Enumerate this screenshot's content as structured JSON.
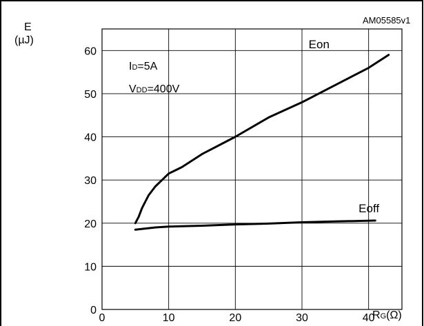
{
  "figure_id": "AM05585v1",
  "conditions": {
    "id": {
      "base": "I",
      "sub": "D",
      "rest": "=5A"
    },
    "vdd": {
      "base": "V",
      "sub": "DD",
      "rest": "=400V"
    }
  },
  "chart_data": {
    "type": "line",
    "ylabel": {
      "line1": "E",
      "line2": "(µJ)"
    },
    "xlabel": {
      "base": "R",
      "sub": "G",
      "rest": "(Ω)"
    },
    "xlim": [
      0,
      45
    ],
    "ylim": [
      0,
      65
    ],
    "xticks": [
      "0",
      "10",
      "20",
      "30",
      "40"
    ],
    "yticks": [
      "0",
      "10",
      "20",
      "30",
      "40",
      "50",
      "60"
    ],
    "grid": true,
    "series": [
      {
        "name": "Eon",
        "x": [
          5,
          5.5,
          6,
          6.5,
          7,
          8,
          9,
          10,
          12,
          15,
          20,
          25,
          30,
          35,
          40,
          43
        ],
        "y": [
          20,
          21.5,
          23.5,
          25,
          26.5,
          28.5,
          30,
          31.5,
          33,
          36,
          40,
          44.5,
          48,
          52,
          56,
          59
        ]
      },
      {
        "name": "Eoff",
        "x": [
          5,
          8,
          10,
          15,
          20,
          25,
          30,
          35,
          41
        ],
        "y": [
          18.5,
          19,
          19.2,
          19.4,
          19.7,
          19.9,
          20.2,
          20.4,
          20.6
        ]
      }
    ]
  }
}
